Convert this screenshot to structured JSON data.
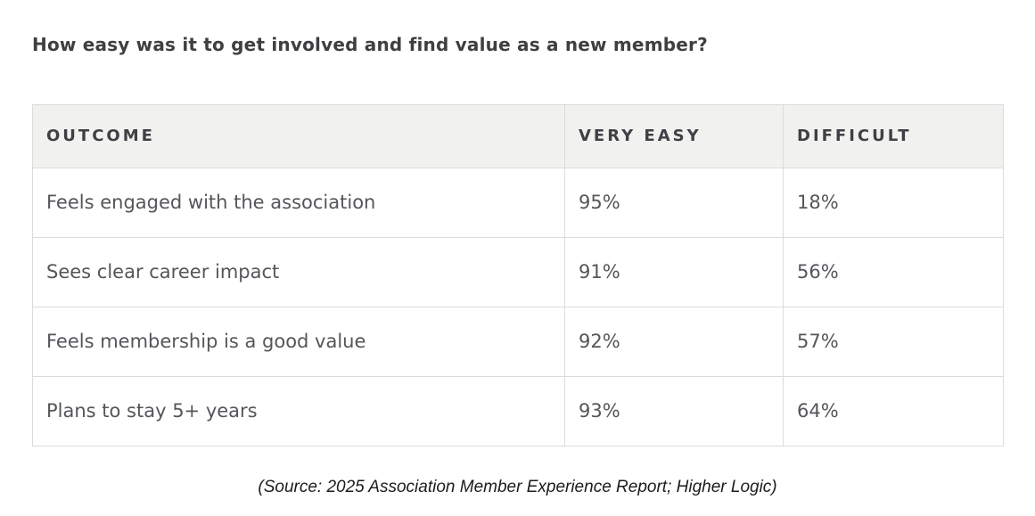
{
  "title": "How easy was it to get involved and find value as a new member?",
  "table": {
    "columns": [
      "OUTCOME",
      "VERY EASY",
      "DIFFICULT"
    ],
    "rows": [
      {
        "outcome": "Feels engaged with the association",
        "very_easy": "95%",
        "difficult": "18%"
      },
      {
        "outcome": "Sees clear career impact",
        "very_easy": "91%",
        "difficult": "56%"
      },
      {
        "outcome": "Feels membership is a good value",
        "very_easy": "92%",
        "difficult": "57%"
      },
      {
        "outcome": "Plans to stay 5+ years",
        "very_easy": "93%",
        "difficult": "64%"
      }
    ]
  },
  "source": "(Source: 2025 Association Member Experience Report; Higher Logic)",
  "chart_data": {
    "type": "table",
    "title": "How easy was it to get involved and find value as a new member?",
    "categories": [
      "Feels engaged with the association",
      "Sees clear career impact",
      "Feels membership is a good value",
      "Plans to stay 5+ years"
    ],
    "series": [
      {
        "name": "VERY EASY",
        "values": [
          95,
          91,
          92,
          93
        ]
      },
      {
        "name": "DIFFICULT",
        "values": [
          18,
          56,
          57,
          64
        ]
      }
    ],
    "unit": "%",
    "source": "(Source: 2025 Association Member Experience Report; Higher Logic)"
  },
  "colors": {
    "header_background": "#f1f1ef",
    "border": "#dcdcdb",
    "title_text": "#3e3f41",
    "header_text": "#3e4045",
    "body_text": "#54565a",
    "source_text": "#1c1c1c",
    "page_background": "#ffffff"
  }
}
